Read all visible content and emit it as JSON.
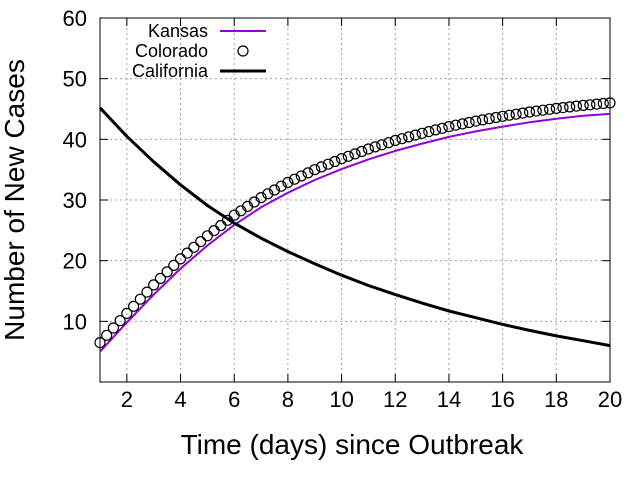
{
  "chart_data": {
    "type": "line",
    "title": "",
    "xlabel": "Time (days) since Outbreak",
    "ylabel": "Number of New Cases",
    "xlim": [
      1,
      20
    ],
    "ylim": [
      0,
      60
    ],
    "xticks": [
      2,
      4,
      6,
      8,
      10,
      12,
      14,
      16,
      18,
      20
    ],
    "yticks": [
      10,
      20,
      30,
      40,
      50,
      60
    ],
    "grid": true,
    "legend_position": "top-left",
    "series": [
      {
        "name": "Kansas",
        "style": "line",
        "color": "#9400d3",
        "x": [
          1,
          2,
          3,
          4,
          5,
          6,
          7,
          8,
          9,
          10,
          11,
          12,
          13,
          14,
          15,
          16,
          17,
          18,
          19,
          20
        ],
        "y": [
          5.0,
          9.8,
          14.4,
          18.7,
          22.5,
          25.9,
          28.8,
          31.2,
          33.3,
          35.1,
          36.7,
          38.1,
          39.3,
          40.4,
          41.3,
          42.1,
          42.8,
          43.4,
          43.9,
          44.2
        ]
      },
      {
        "name": "Colorado",
        "style": "points",
        "color": "#000000",
        "x_start": 1,
        "x_step": 0.25,
        "x_points": [
          1,
          2,
          3,
          4,
          5,
          6,
          7,
          8,
          9,
          10,
          11,
          12,
          13,
          14,
          15,
          16,
          17,
          18,
          19,
          20
        ],
        "y_points": [
          6.5,
          11.3,
          16.0,
          20.3,
          24.1,
          27.5,
          30.4,
          32.9,
          35.0,
          36.8,
          38.4,
          39.8,
          41.0,
          42.1,
          43.0,
          43.8,
          44.5,
          45.1,
          45.6,
          46.0
        ]
      },
      {
        "name": "California",
        "style": "line",
        "color": "#000000",
        "x": [
          1,
          2,
          3,
          4,
          5,
          6,
          7,
          8,
          9,
          10,
          11,
          12,
          13,
          14,
          15,
          16,
          17,
          18,
          19,
          20
        ],
        "y": [
          45.2,
          40.5,
          36.3,
          32.5,
          29.1,
          26.2,
          23.7,
          21.5,
          19.5,
          17.6,
          15.9,
          14.4,
          13.0,
          11.7,
          10.6,
          9.5,
          8.5,
          7.6,
          6.8,
          6.0
        ]
      }
    ]
  }
}
